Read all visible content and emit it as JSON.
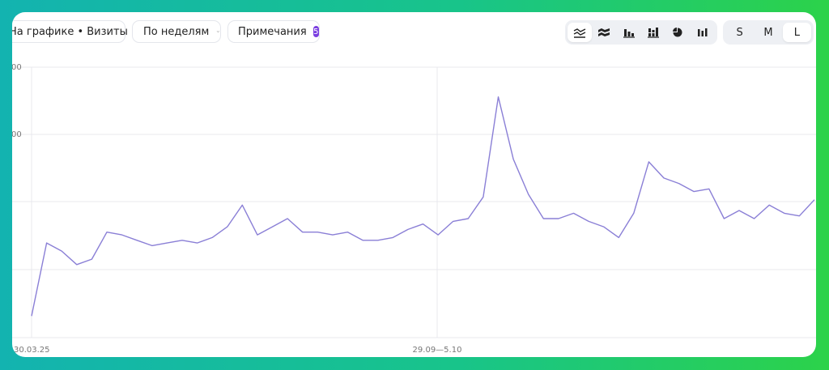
{
  "toolbar": {
    "metric_select": "На графике • Визиты",
    "period_select": "По неделям",
    "notes_label": "Примечания",
    "notes_count": "5",
    "chart_types": [
      "line-icon",
      "area-stacked-icon",
      "bar-icon",
      "bar-stacked-icon",
      "pie-icon",
      "bar-grouped-icon"
    ],
    "sizes": [
      "S",
      "M",
      "L"
    ],
    "active_size": "L"
  },
  "colors": {
    "line": "#8a7fd6",
    "grid": "#e9e9ee",
    "badge": "#7a3ee0"
  },
  "chart_data": {
    "type": "line",
    "title": "",
    "xlabel": "",
    "ylabel": "",
    "y_tick_labels": [
      "00",
      "00"
    ],
    "x_tick_labels": [
      "30.03.25",
      "29.09—5.10"
    ],
    "grid": true,
    "ylim": [
      0,
      100
    ],
    "series": [
      {
        "values": [
          8,
          35,
          32,
          27,
          29,
          39,
          38,
          36,
          34,
          35,
          36,
          35,
          37,
          41,
          49,
          38,
          41,
          44,
          39,
          39,
          38,
          39,
          36,
          36,
          37,
          40,
          42,
          38,
          43,
          44,
          52,
          89,
          66,
          53,
          44,
          44,
          46,
          43,
          41,
          37,
          46,
          65,
          59,
          57,
          54,
          55,
          44,
          47,
          44,
          49,
          46,
          45,
          51
        ]
      }
    ]
  }
}
